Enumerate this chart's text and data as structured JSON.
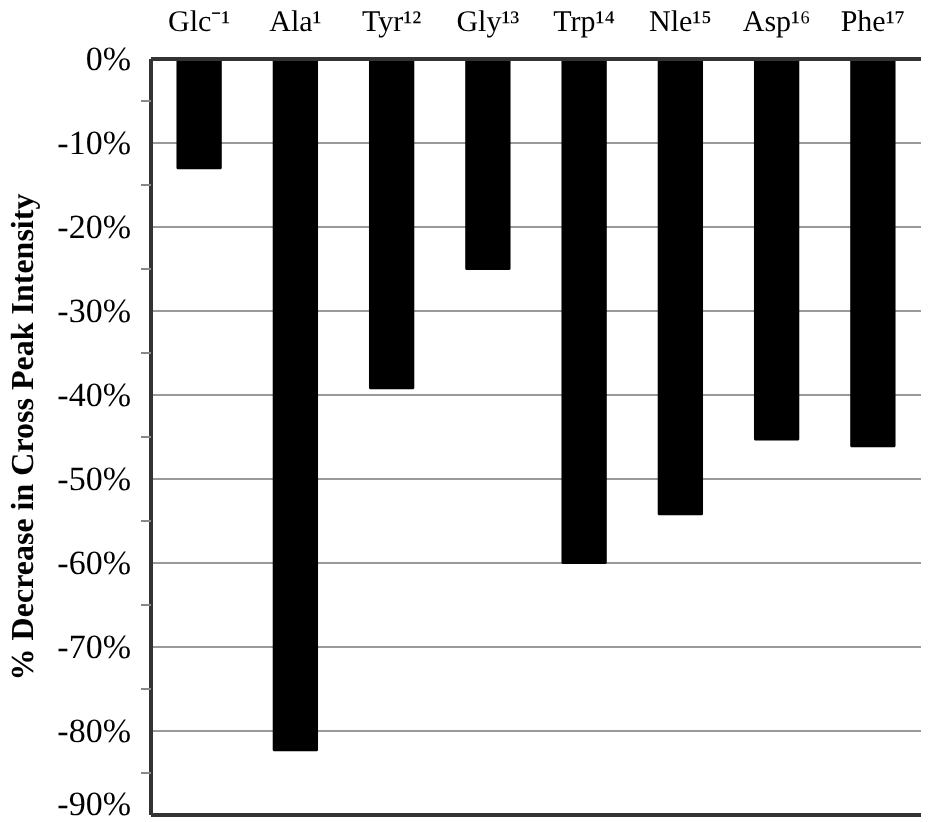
{
  "chart_data": {
    "type": "bar",
    "ylabel": "% Decrease in Cross Peak Intensity",
    "categories": [
      "Glc⁻¹",
      "Ala¹",
      "Tyr¹²",
      "Gly¹³",
      "Trp¹⁴",
      "Nle¹⁵",
      "Asp¹⁶",
      "Phe¹⁷"
    ],
    "values": [
      -13,
      -82.3,
      -39.2,
      -25,
      -60,
      -54.2,
      -45.3,
      -46.1
    ],
    "color": "#000000",
    "ylim": [
      -90,
      0
    ],
    "yticks": [
      {
        "value": 0,
        "label": "0%"
      },
      {
        "value": -10,
        "label": "-10%"
      },
      {
        "value": -20,
        "label": "-20%"
      },
      {
        "value": -30,
        "label": "-30%"
      },
      {
        "value": -40,
        "label": "-40%"
      },
      {
        "value": -50,
        "label": "-50%"
      },
      {
        "value": -60,
        "label": "-60%"
      },
      {
        "value": -70,
        "label": "-70%"
      },
      {
        "value": -80,
        "label": "-80%"
      },
      {
        "value": -90,
        "label": "-90%"
      }
    ],
    "grid": "y"
  }
}
